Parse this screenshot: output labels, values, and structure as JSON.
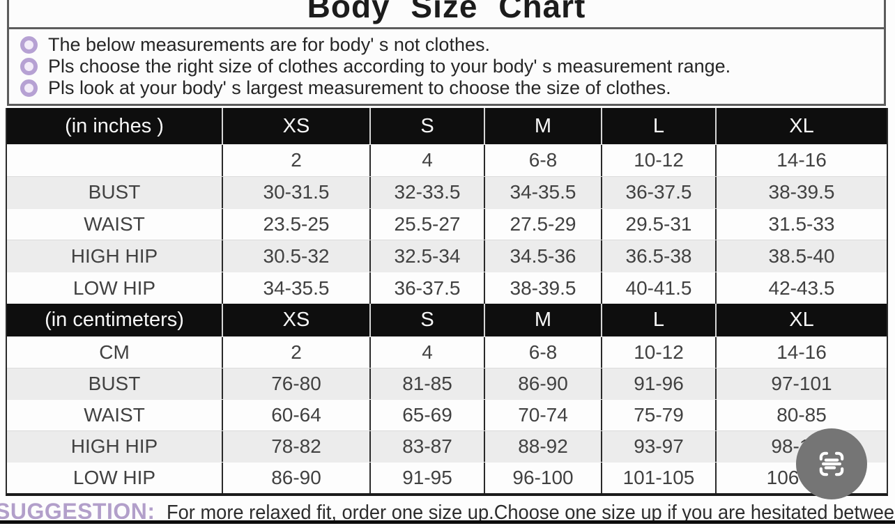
{
  "title": "Body Size Chart",
  "notes": {
    "items": [
      "The below measurements are for  body' s not clothes.",
      "Pls choose the right size of clothes according to your body' s  measurement range.",
      "Pls look  at your body' s  largest measurement to choose the size of clothes."
    ]
  },
  "chart_data": [
    {
      "type": "table",
      "unit": "inches",
      "columns": [
        "(in  inches )",
        "XS",
        "S",
        "M",
        "L",
        "XL"
      ],
      "rows": [
        [
          "",
          "2",
          "4",
          "6-8",
          "10-12",
          "14-16"
        ],
        [
          "BUST",
          "30-31.5",
          "32-33.5",
          "34-35.5",
          "36-37.5",
          "38-39.5"
        ],
        [
          "WAIST",
          "23.5-25",
          "25.5-27",
          "27.5-29",
          "29.5-31",
          "31.5-33"
        ],
        [
          "HIGH HIP",
          "30.5-32",
          "32.5-34",
          "34.5-36",
          "36.5-38",
          "38.5-40"
        ],
        [
          "LOW HIP",
          "34-35.5",
          "36-37.5",
          "38-39.5",
          "40-41.5",
          "42-43.5"
        ]
      ]
    },
    {
      "type": "table",
      "unit": "centimeters",
      "columns": [
        "(in centimeters)",
        "XS",
        "S",
        "M",
        "L",
        "XL"
      ],
      "rows": [
        [
          "CM",
          "2",
          "4",
          "6-8",
          "10-12",
          "14-16"
        ],
        [
          "BUST",
          "76-80",
          "81-85",
          "86-90",
          "91-96",
          "97-101"
        ],
        [
          "WAIST",
          "60-64",
          "65-69",
          "70-74",
          "75-79",
          "80-85"
        ],
        [
          "HIGH HIP",
          "78-82",
          "83-87",
          "88-92",
          "93-97",
          "98-102"
        ],
        [
          "LOW HIP",
          "86-90",
          "91-95",
          "96-100",
          "101-105",
          "106-110"
        ]
      ]
    }
  ],
  "suggestion": {
    "label": "SUGGESTION:",
    "text": "For more relaxed fit, order one size up.Choose one size up if you are hesitated between two sizes"
  },
  "floating_button": {
    "icon": "scan-text-icon"
  },
  "colors": {
    "bullet_purple": "#b6a1d3",
    "suggestion_purple": "#b29fca",
    "table_header_bg": "#0e0e0e",
    "row_alt_bg": "#ececec",
    "border_dark": "#2a2a2a",
    "button_gray": "#757575"
  }
}
